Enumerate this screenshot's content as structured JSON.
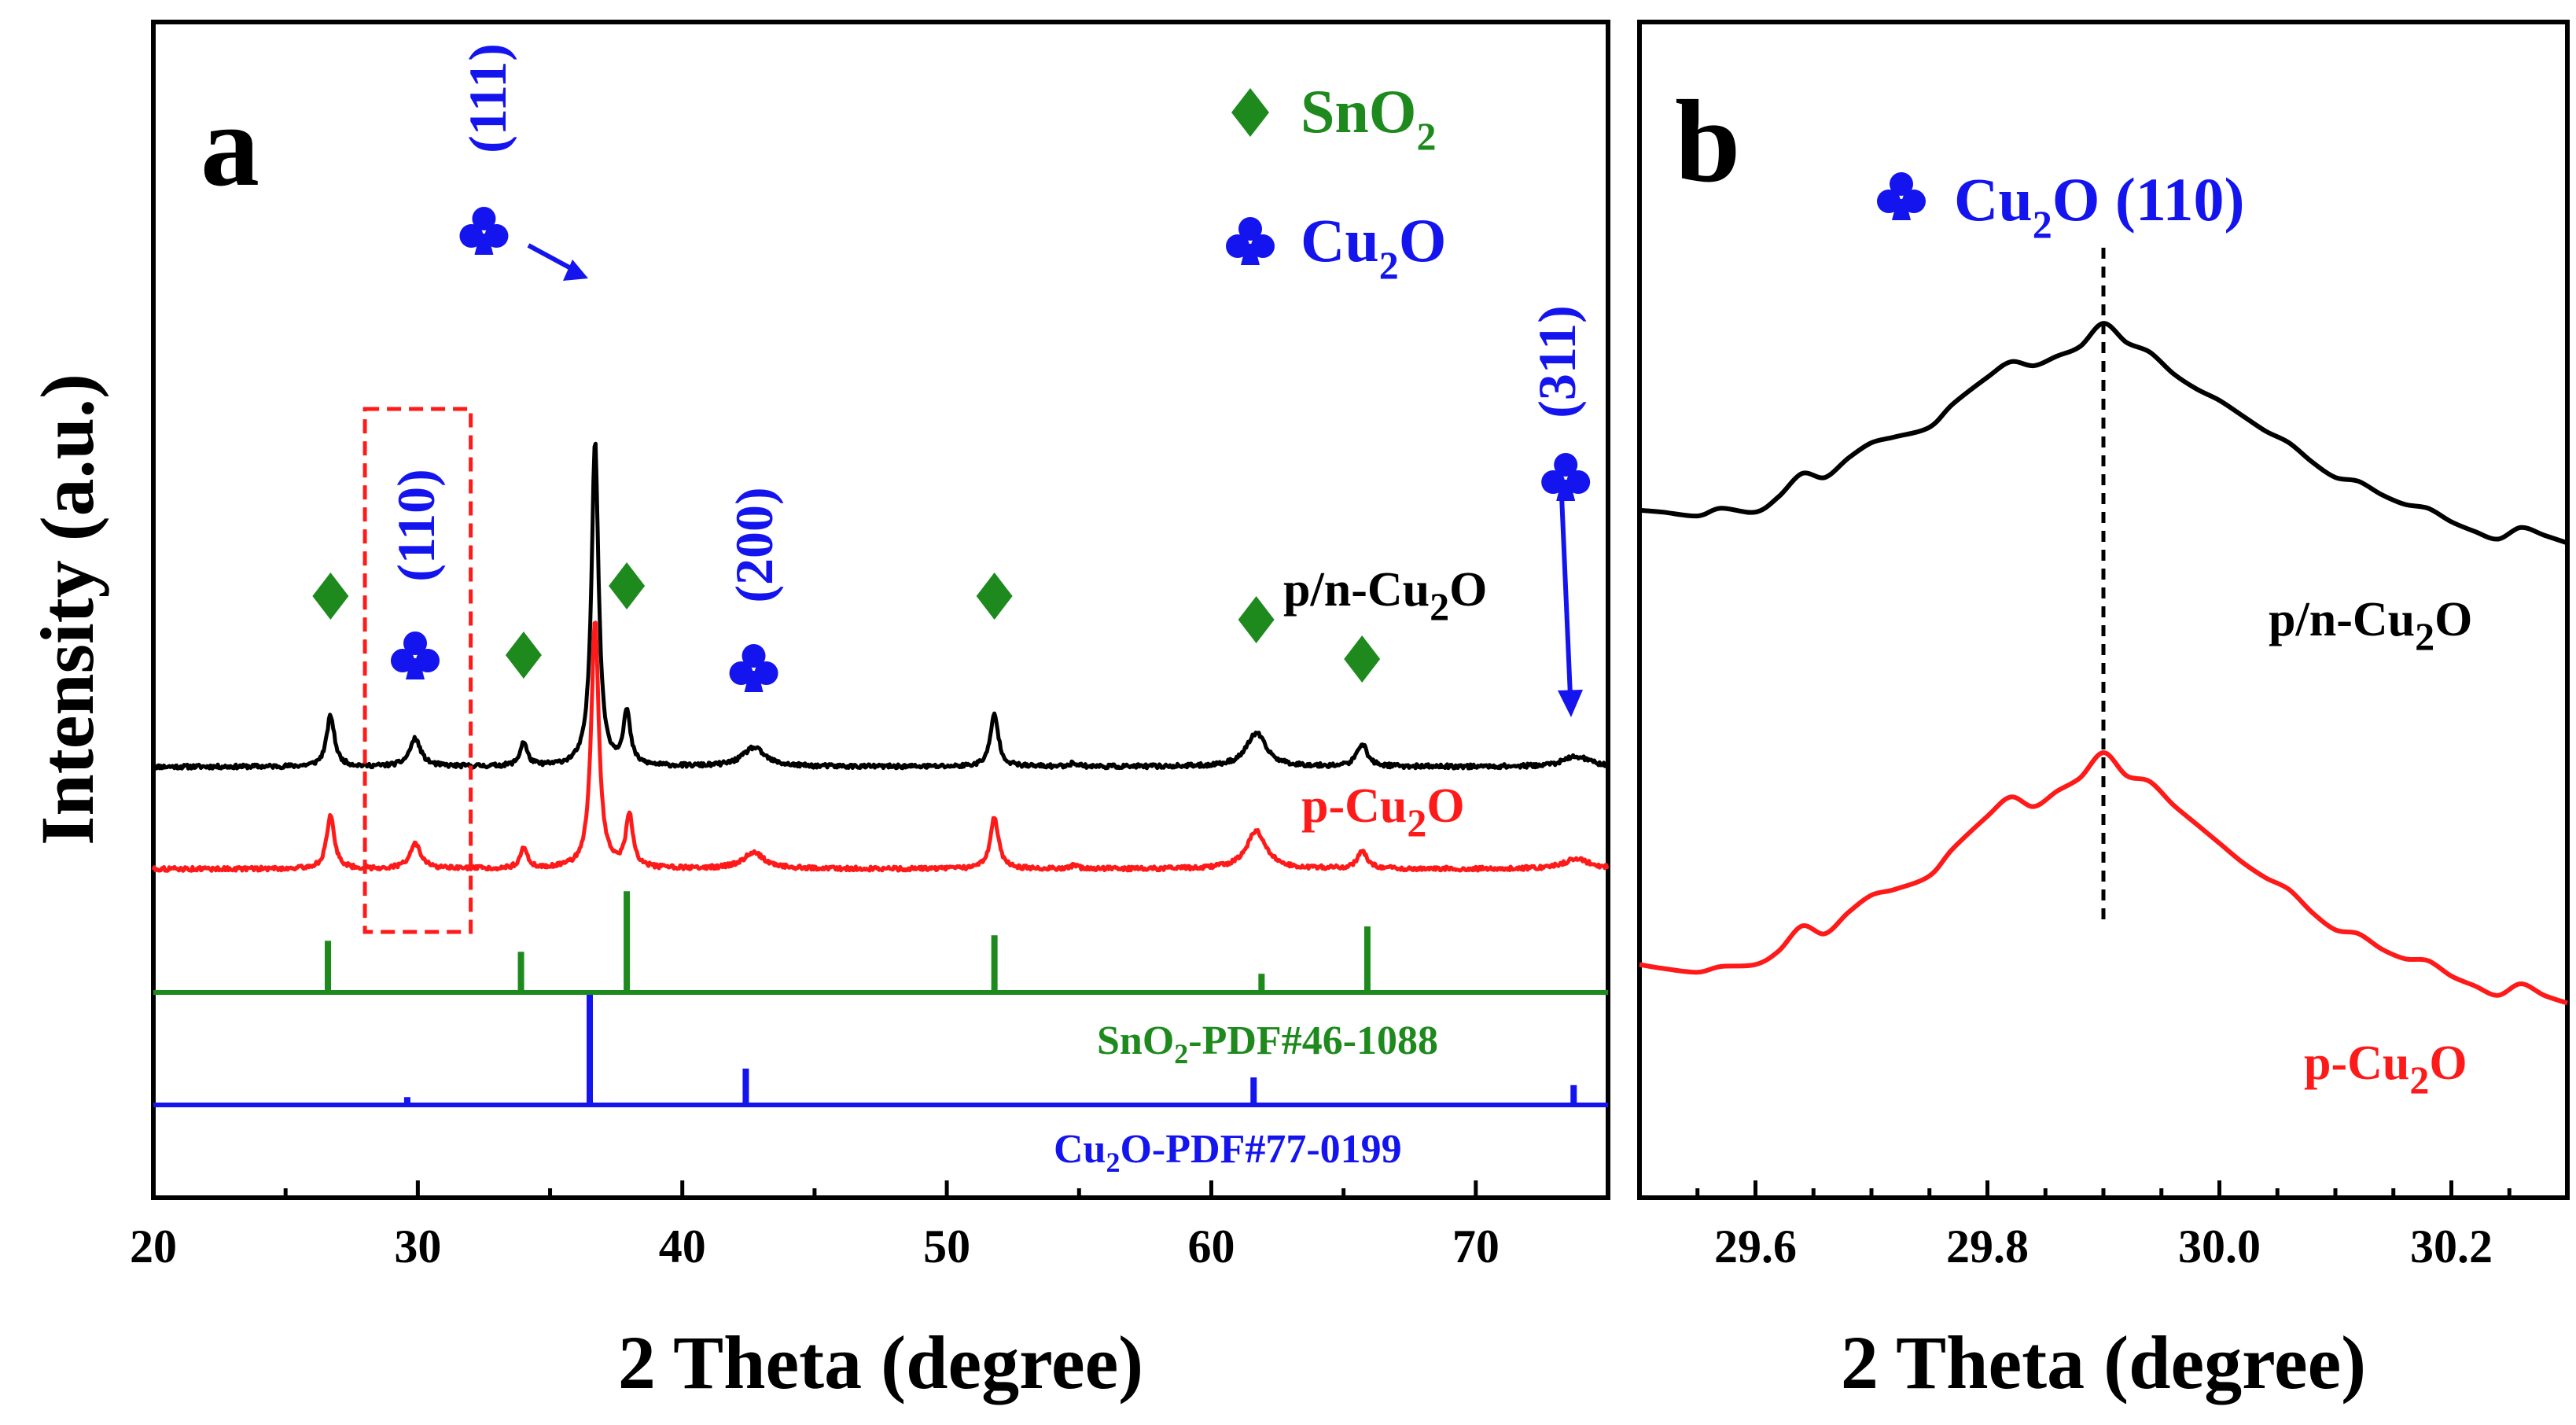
{
  "figure": {
    "chart_data": [
      {
        "panel": "a",
        "type": "line",
        "xlabel": "2 Theta (degree)",
        "ylabel": "Intensity (a.u.)",
        "xlim": [
          20,
          75
        ],
        "xticks": [
          20,
          30,
          40,
          50,
          60,
          70
        ],
        "y_ticks_shown": false,
        "legend": [
          {
            "symbol": "diamond",
            "text_main": "SnO",
            "text_sub": "2",
            "color": "#1e8a1e"
          },
          {
            "symbol": "club",
            "text_main": "Cu",
            "text_sub": "2",
            "text_post": "O",
            "color": "#1414ee"
          }
        ],
        "series": [
          {
            "name": "p/n-Cu2O",
            "label_main": "p/n-Cu",
            "label_sub": "2",
            "label_post": "O",
            "color": "#000000",
            "baseline": 1.0,
            "peaks": [
              {
                "x": 26.7,
                "h": 1.75,
                "w": 0.18
              },
              {
                "x": 29.9,
                "h": 0.95,
                "w": 0.25
              },
              {
                "x": 34.0,
                "h": 0.82,
                "w": 0.16
              },
              {
                "x": 36.7,
                "h": 11.2,
                "w": 0.16
              },
              {
                "x": 37.9,
                "h": 1.8,
                "w": 0.16
              },
              {
                "x": 42.7,
                "h": 0.65,
                "w": 0.5
              },
              {
                "x": 51.8,
                "h": 1.8,
                "w": 0.18
              },
              {
                "x": 54.8,
                "h": 0.12,
                "w": 0.2
              },
              {
                "x": 61.7,
                "h": 1.15,
                "w": 0.45
              },
              {
                "x": 65.7,
                "h": 0.8,
                "w": 0.22
              },
              {
                "x": 73.8,
                "h": 0.35,
                "w": 0.6
              }
            ]
          },
          {
            "name": "p-Cu2O",
            "label_main": "p-Cu",
            "label_sub": "2",
            "label_post": "O",
            "color": "#ff1a1a",
            "baseline": 0.0,
            "peaks": [
              {
                "x": 26.7,
                "h": 1.8,
                "w": 0.18
              },
              {
                "x": 29.9,
                "h": 0.85,
                "w": 0.25
              },
              {
                "x": 34.0,
                "h": 0.72,
                "w": 0.16
              },
              {
                "x": 36.7,
                "h": 8.6,
                "w": 0.17
              },
              {
                "x": 38.0,
                "h": 1.85,
                "w": 0.16
              },
              {
                "x": 42.7,
                "h": 0.55,
                "w": 0.5
              },
              {
                "x": 51.8,
                "h": 1.8,
                "w": 0.18
              },
              {
                "x": 54.8,
                "h": 0.1,
                "w": 0.2
              },
              {
                "x": 61.7,
                "h": 1.3,
                "w": 0.45
              },
              {
                "x": 65.7,
                "h": 0.6,
                "w": 0.22
              },
              {
                "x": 73.8,
                "h": 0.35,
                "w": 0.6
              }
            ]
          }
        ],
        "reference_patterns": [
          {
            "name": "SnO2-PDF#46-1088",
            "label_main": "SnO",
            "label_sub": "2",
            "label_post": "-PDF#46-1088",
            "color": "#1e8a1e",
            "lines": [
              {
                "x": 26.6,
                "h": 0.47
              },
              {
                "x": 33.9,
                "h": 0.37
              },
              {
                "x": 37.9,
                "h": 0.92
              },
              {
                "x": 51.8,
                "h": 0.52
              },
              {
                "x": 61.9,
                "h": 0.17
              },
              {
                "x": 65.9,
                "h": 0.6
              }
            ]
          },
          {
            "name": "Cu2O-PDF#77-0199",
            "label_main": "Cu",
            "label_sub": "2",
            "label_post": "O-PDF#77-0199",
            "color": "#1414ee",
            "lines": [
              {
                "x": 29.6,
                "h": 0.07
              },
              {
                "x": 36.5,
                "h": 1.0
              },
              {
                "x": 42.4,
                "h": 0.33
              },
              {
                "x": 61.6,
                "h": 0.25
              },
              {
                "x": 73.7,
                "h": 0.18
              }
            ]
          }
        ],
        "annotations": {
          "sno2_peak_markers": [
            26.7,
            34.0,
            37.9,
            51.8,
            61.7,
            65.7
          ],
          "cu2o_peak_labels": [
            {
              "x": 29.9,
              "miller": "(110)"
            },
            {
              "x": 36.7,
              "miller": "(111)"
            },
            {
              "x": 42.7,
              "miller": "(200)"
            },
            {
              "x": 73.8,
              "miller": "(311)"
            }
          ],
          "highlight_box_x": [
            28.0,
            32.0
          ]
        }
      },
      {
        "panel": "b",
        "type": "line",
        "xlabel": "2 Theta (degree)",
        "xlim": [
          29.5,
          30.3
        ],
        "xticks": [
          29.6,
          29.8,
          30.0,
          30.2
        ],
        "xtick_labels": [
          "29.6",
          "29.8",
          "30.0",
          "30.2"
        ],
        "title_main": "Cu",
        "title_sub": "2",
        "title_post": "O (110)",
        "dashed_line_x": 29.9,
        "series": [
          {
            "name": "p/n-Cu2O",
            "label_main": "p/n-Cu",
            "label_sub": "2",
            "label_post": "O",
            "color": "#000000",
            "points": [
              [
                29.5,
                0.25
              ],
              [
                29.52,
                0.24
              ],
              [
                29.55,
                0.22
              ],
              [
                29.57,
                0.26
              ],
              [
                29.6,
                0.24
              ],
              [
                29.62,
                0.32
              ],
              [
                29.64,
                0.44
              ],
              [
                29.66,
                0.42
              ],
              [
                29.68,
                0.52
              ],
              [
                29.7,
                0.6
              ],
              [
                29.72,
                0.63
              ],
              [
                29.75,
                0.68
              ],
              [
                29.77,
                0.8
              ],
              [
                29.8,
                0.94
              ],
              [
                29.82,
                1.02
              ],
              [
                29.84,
                1.0
              ],
              [
                29.86,
                1.05
              ],
              [
                29.88,
                1.1
              ],
              [
                29.9,
                1.22
              ],
              [
                29.92,
                1.12
              ],
              [
                29.94,
                1.07
              ],
              [
                29.96,
                0.96
              ],
              [
                29.98,
                0.88
              ],
              [
                30.0,
                0.82
              ],
              [
                30.02,
                0.74
              ],
              [
                30.04,
                0.66
              ],
              [
                30.06,
                0.6
              ],
              [
                30.08,
                0.5
              ],
              [
                30.1,
                0.42
              ],
              [
                30.12,
                0.4
              ],
              [
                30.14,
                0.33
              ],
              [
                30.16,
                0.28
              ],
              [
                30.18,
                0.26
              ],
              [
                30.2,
                0.19
              ],
              [
                30.22,
                0.14
              ],
              [
                30.24,
                0.1
              ],
              [
                30.26,
                0.16
              ],
              [
                30.28,
                0.12
              ],
              [
                30.3,
                0.08
              ]
            ]
          },
          {
            "name": "p-Cu2O",
            "label_main": "p-Cu",
            "label_sub": "2",
            "label_post": "O",
            "color": "#ff1a1a",
            "points": [
              [
                29.5,
                0.3
              ],
              [
                29.52,
                0.28
              ],
              [
                29.55,
                0.26
              ],
              [
                29.57,
                0.29
              ],
              [
                29.6,
                0.3
              ],
              [
                29.62,
                0.37
              ],
              [
                29.64,
                0.5
              ],
              [
                29.66,
                0.46
              ],
              [
                29.68,
                0.57
              ],
              [
                29.7,
                0.66
              ],
              [
                29.72,
                0.69
              ],
              [
                29.75,
                0.76
              ],
              [
                29.77,
                0.9
              ],
              [
                29.8,
                1.07
              ],
              [
                29.82,
                1.17
              ],
              [
                29.84,
                1.12
              ],
              [
                29.86,
                1.2
              ],
              [
                29.88,
                1.27
              ],
              [
                29.9,
                1.4
              ],
              [
                29.92,
                1.28
              ],
              [
                29.94,
                1.25
              ],
              [
                29.96,
                1.13
              ],
              [
                29.98,
                1.03
              ],
              [
                30.0,
                0.93
              ],
              [
                30.02,
                0.83
              ],
              [
                30.04,
                0.75
              ],
              [
                30.06,
                0.69
              ],
              [
                30.08,
                0.57
              ],
              [
                30.1,
                0.48
              ],
              [
                30.12,
                0.46
              ],
              [
                30.14,
                0.38
              ],
              [
                30.16,
                0.33
              ],
              [
                30.18,
                0.32
              ],
              [
                30.2,
                0.24
              ],
              [
                30.22,
                0.19
              ],
              [
                30.24,
                0.14
              ],
              [
                30.26,
                0.2
              ],
              [
                30.28,
                0.14
              ],
              [
                30.3,
                0.1
              ]
            ]
          }
        ]
      }
    ]
  }
}
